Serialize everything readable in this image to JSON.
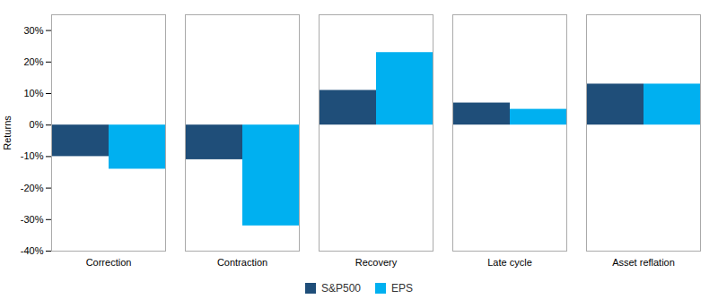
{
  "chart_data": {
    "type": "bar",
    "categories": [
      "Correction",
      "Contraction",
      "Recovery",
      "Late cycle",
      "Asset reflation"
    ],
    "series": [
      {
        "name": "S&P500",
        "color": "#1f4e79",
        "values": [
          -10,
          -11,
          11,
          7,
          13
        ]
      },
      {
        "name": "EPS",
        "color": "#00b0f0",
        "values": [
          -14,
          -32,
          23,
          5,
          13
        ]
      }
    ],
    "ylabel": "Returns",
    "ylim": [
      -40,
      35
    ],
    "yticks": [
      {
        "value": -40,
        "label": "-40%"
      },
      {
        "value": -30,
        "label": "-30%"
      },
      {
        "value": -20,
        "label": "-20%"
      },
      {
        "value": -10,
        "label": "-10%"
      },
      {
        "value": 0,
        "label": "0%"
      },
      {
        "value": 10,
        "label": "10%"
      },
      {
        "value": 20,
        "label": "20%"
      },
      {
        "value": 30,
        "label": "30%"
      }
    ],
    "grid": false,
    "legend": "bottom"
  }
}
